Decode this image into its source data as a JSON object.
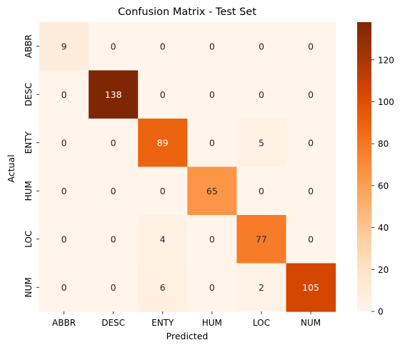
{
  "chart_data": {
    "type": "heatmap",
    "title": "Confusion Matrix - Test Set",
    "xlabel": "Predicted",
    "ylabel": "Actual",
    "x_categories": [
      "ABBR",
      "DESC",
      "ENTY",
      "HUM",
      "LOC",
      "NUM"
    ],
    "y_categories": [
      "ABBR",
      "DESC",
      "ENTY",
      "HUM",
      "LOC",
      "NUM"
    ],
    "values": [
      [
        9,
        0,
        0,
        0,
        0,
        0
      ],
      [
        0,
        138,
        0,
        0,
        0,
        0
      ],
      [
        0,
        0,
        89,
        0,
        5,
        0
      ],
      [
        0,
        0,
        0,
        65,
        0,
        0
      ],
      [
        0,
        0,
        4,
        0,
        77,
        0
      ],
      [
        0,
        0,
        6,
        0,
        2,
        105
      ]
    ],
    "colorbar": {
      "range": [
        0,
        138
      ],
      "ticks": [
        0,
        20,
        40,
        60,
        80,
        100,
        120
      ],
      "colormap": "Oranges",
      "low_color": "#fff5eb",
      "high_color": "#7f2704"
    },
    "annotations": true
  }
}
